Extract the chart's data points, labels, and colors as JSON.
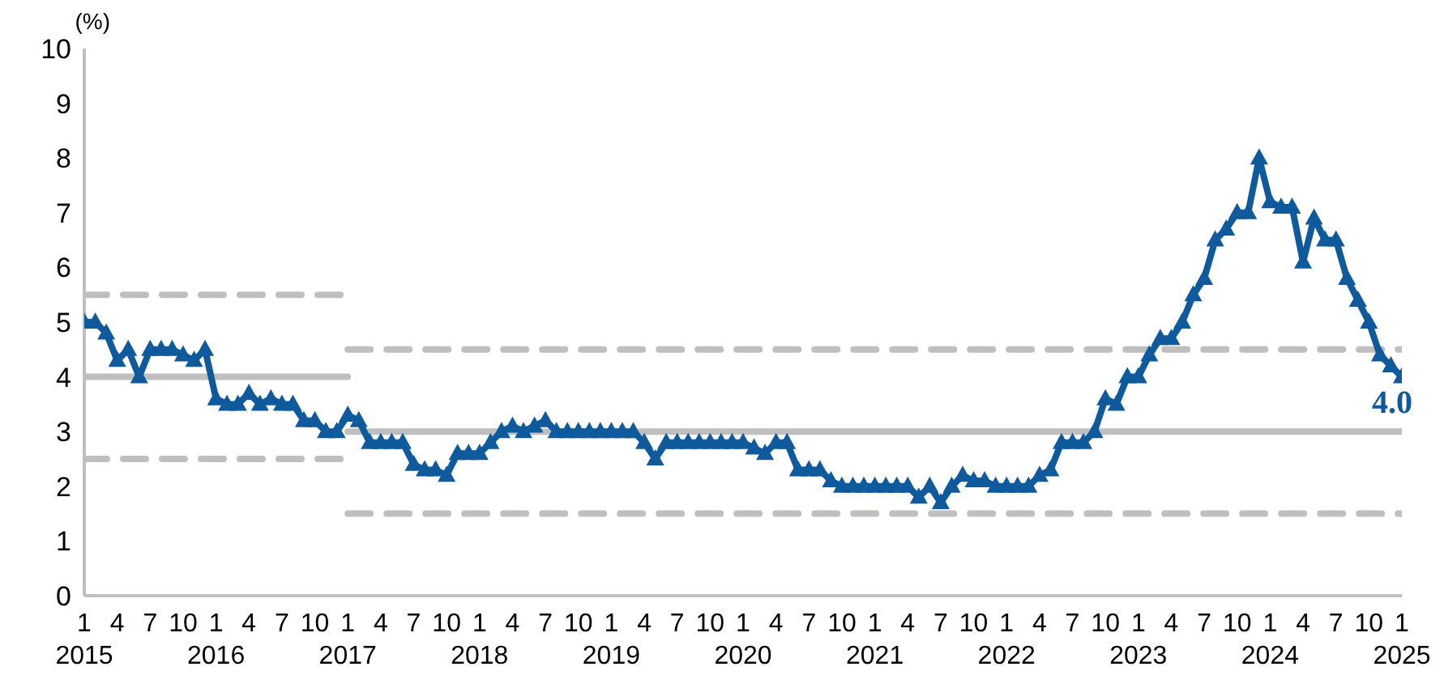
{
  "chart_data": {
    "type": "line",
    "ylabel": "(%)",
    "xlim": [
      "2015-01",
      "2025-01"
    ],
    "ylim": [
      0,
      10
    ],
    "yticks": [
      0,
      1,
      2,
      3,
      4,
      5,
      6,
      7,
      8,
      9,
      10
    ],
    "xticks": [
      {
        "value": "2015-01",
        "label": "1\n2015"
      },
      {
        "value": "2015-04",
        "label": "4"
      },
      {
        "value": "2015-07",
        "label": "7"
      },
      {
        "value": "2015-10",
        "label": "10"
      },
      {
        "value": "2016-01",
        "label": "1\n2016"
      },
      {
        "value": "2016-04",
        "label": "4"
      },
      {
        "value": "2016-07",
        "label": "7"
      },
      {
        "value": "2016-10",
        "label": "10"
      },
      {
        "value": "2017-01",
        "label": "1\n2017"
      },
      {
        "value": "2017-04",
        "label": "4"
      },
      {
        "value": "2017-07",
        "label": "7"
      },
      {
        "value": "2017-10",
        "label": "10"
      },
      {
        "value": "2018-01",
        "label": "1\n2018"
      },
      {
        "value": "2018-04",
        "label": "4"
      },
      {
        "value": "2018-07",
        "label": "7"
      },
      {
        "value": "2018-10",
        "label": "10"
      },
      {
        "value": "2019-01",
        "label": "1\n2019"
      },
      {
        "value": "2019-04",
        "label": "4"
      },
      {
        "value": "2019-07",
        "label": "7"
      },
      {
        "value": "2019-10",
        "label": "10"
      },
      {
        "value": "2020-01",
        "label": "1\n2020"
      },
      {
        "value": "2020-04",
        "label": "4"
      },
      {
        "value": "2020-07",
        "label": "7"
      },
      {
        "value": "2020-10",
        "label": "10"
      },
      {
        "value": "2021-01",
        "label": "1\n2021"
      },
      {
        "value": "2021-04",
        "label": "4"
      },
      {
        "value": "2021-07",
        "label": "7"
      },
      {
        "value": "2021-10",
        "label": "10"
      },
      {
        "value": "2022-01",
        "label": "1\n2022"
      },
      {
        "value": "2022-04",
        "label": "4"
      },
      {
        "value": "2022-07",
        "label": "7"
      },
      {
        "value": "2022-10",
        "label": "10"
      },
      {
        "value": "2023-01",
        "label": "1\n2023"
      },
      {
        "value": "2023-04",
        "label": "4"
      },
      {
        "value": "2023-07",
        "label": "7"
      },
      {
        "value": "2023-10",
        "label": "10"
      },
      {
        "value": "2024-01",
        "label": "1\n2024"
      },
      {
        "value": "2024-04",
        "label": "4"
      },
      {
        "value": "2024-07",
        "label": "7"
      },
      {
        "value": "2024-10",
        "label": "10"
      },
      {
        "value": "2025-01",
        "label": "1\n2025"
      }
    ],
    "annotations": [
      {
        "text": "4.0",
        "x": "2025-01",
        "y": 4.0
      }
    ],
    "series": [
      {
        "color": "#bfbfbf",
        "line_style": "solid",
        "marker": "none",
        "x": [
          "2015-01",
          "2017-01"
        ],
        "values": [
          4,
          4
        ]
      },
      {
        "color": "#bfbfbf",
        "line_style": "dashed",
        "marker": "none",
        "x": [
          "2015-01",
          "2017-01"
        ],
        "values": [
          5.5,
          5.5
        ]
      },
      {
        "color": "#bfbfbf",
        "line_style": "dashed",
        "marker": "none",
        "x": [
          "2015-01",
          "2017-01"
        ],
        "values": [
          2.5,
          2.5
        ]
      },
      {
        "color": "#bfbfbf",
        "line_style": "solid",
        "marker": "none",
        "x": [
          "2017-01",
          "2025-01"
        ],
        "values": [
          3,
          3
        ]
      },
      {
        "color": "#bfbfbf",
        "line_style": "dashed",
        "marker": "none",
        "x": [
          "2017-01",
          "2025-01"
        ],
        "values": [
          4.5,
          4.5
        ]
      },
      {
        "color": "#bfbfbf",
        "line_style": "dashed",
        "marker": "none",
        "x": [
          "2017-01",
          "2025-01"
        ],
        "values": [
          1.5,
          1.5
        ]
      },
      {
        "color": "#0f5a9c",
        "line_style": "solid",
        "marker": "triangle",
        "x": [
          "2015-01",
          "2015-02",
          "2015-03",
          "2015-04",
          "2015-05",
          "2015-06",
          "2015-07",
          "2015-08",
          "2015-09",
          "2015-10",
          "2015-11",
          "2015-12",
          "2016-01",
          "2016-02",
          "2016-03",
          "2016-04",
          "2016-05",
          "2016-06",
          "2016-07",
          "2016-08",
          "2016-09",
          "2016-10",
          "2016-11",
          "2016-12",
          "2017-01",
          "2017-02",
          "2017-03",
          "2017-04",
          "2017-05",
          "2017-06",
          "2017-07",
          "2017-08",
          "2017-09",
          "2017-10",
          "2017-11",
          "2017-12",
          "2018-01",
          "2018-02",
          "2018-03",
          "2018-04",
          "2018-05",
          "2018-06",
          "2018-07",
          "2018-08",
          "2018-09",
          "2018-10",
          "2018-11",
          "2018-12",
          "2019-01",
          "2019-02",
          "2019-03",
          "2019-04",
          "2019-05",
          "2019-06",
          "2019-07",
          "2019-08",
          "2019-09",
          "2019-10",
          "2019-11",
          "2019-12",
          "2020-01",
          "2020-02",
          "2020-03",
          "2020-04",
          "2020-05",
          "2020-06",
          "2020-07",
          "2020-08",
          "2020-09",
          "2020-10",
          "2020-11",
          "2020-12",
          "2021-01",
          "2021-02",
          "2021-03",
          "2021-04",
          "2021-05",
          "2021-06",
          "2021-07",
          "2021-08",
          "2021-09",
          "2021-10",
          "2021-11",
          "2021-12",
          "2022-01",
          "2022-02",
          "2022-03",
          "2022-04",
          "2022-05",
          "2022-06",
          "2022-07",
          "2022-08",
          "2022-09",
          "2022-10",
          "2022-11",
          "2022-12",
          "2023-01",
          "2023-02",
          "2023-03",
          "2023-04",
          "2023-05",
          "2023-06",
          "2023-07",
          "2023-08",
          "2023-09",
          "2023-10",
          "2023-11",
          "2023-12",
          "2024-01",
          "2024-02",
          "2024-03",
          "2024-04",
          "2024-05",
          "2024-06",
          "2024-07",
          "2024-08",
          "2024-09",
          "2024-10",
          "2024-11",
          "2024-12",
          "2025-01"
        ],
        "values": [
          5.0,
          5.0,
          4.8,
          4.3,
          4.5,
          4.0,
          4.5,
          4.5,
          4.5,
          4.4,
          4.3,
          4.5,
          3.6,
          3.5,
          3.5,
          3.7,
          3.5,
          3.6,
          3.5,
          3.5,
          3.2,
          3.2,
          3.0,
          3.0,
          3.3,
          3.2,
          2.8,
          2.8,
          2.8,
          2.8,
          2.4,
          2.3,
          2.3,
          2.2,
          2.6,
          2.6,
          2.6,
          2.8,
          3.0,
          3.1,
          3.0,
          3.1,
          3.2,
          3.0,
          3.0,
          3.0,
          3.0,
          3.0,
          3.0,
          3.0,
          3.0,
          2.8,
          2.5,
          2.8,
          2.8,
          2.8,
          2.8,
          2.8,
          2.8,
          2.8,
          2.8,
          2.7,
          2.6,
          2.8,
          2.8,
          2.3,
          2.3,
          2.3,
          2.1,
          2.0,
          2.0,
          2.0,
          2.0,
          2.0,
          2.0,
          2.0,
          1.8,
          2.0,
          1.7,
          2.0,
          2.2,
          2.1,
          2.1,
          2.0,
          2.0,
          2.0,
          2.0,
          2.2,
          2.3,
          2.8,
          2.8,
          2.8,
          3.0,
          3.6,
          3.5,
          4.0,
          4.0,
          4.4,
          4.7,
          4.7,
          5.0,
          5.5,
          5.8,
          6.5,
          6.7,
          7.0,
          7.0,
          8.0,
          7.2,
          7.1,
          7.1,
          6.1,
          6.9,
          6.5,
          6.5,
          5.8,
          5.4,
          5.0,
          4.4,
          4.2,
          4.0
        ]
      }
    ]
  }
}
